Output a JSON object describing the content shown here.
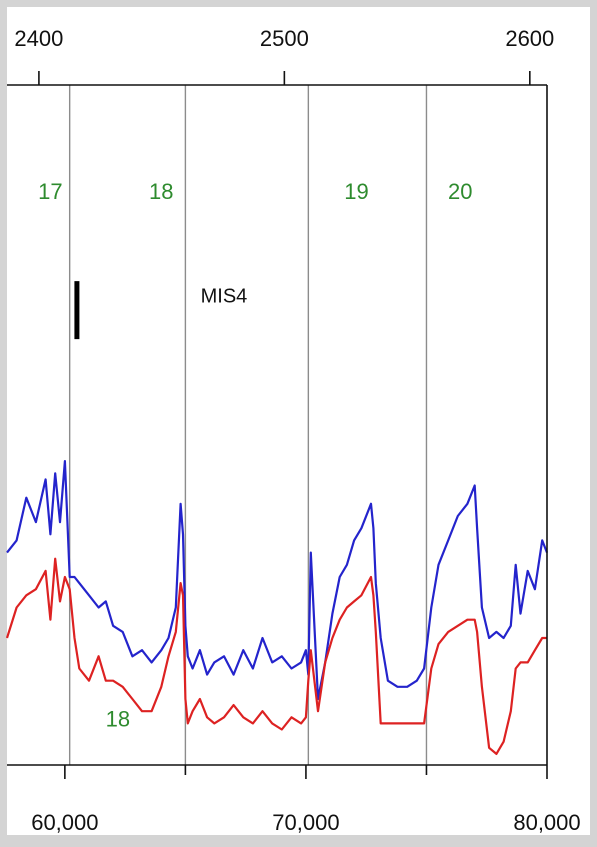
{
  "chart_data": {
    "type": "line",
    "title": "",
    "xlabel": "",
    "ylabel": "",
    "xlim": [
      57600,
      80000
    ],
    "x_ticks": [
      {
        "value": 60000,
        "label": "60,000"
      },
      {
        "value": 70000,
        "label": "70,000"
      },
      {
        "value": 80000,
        "label": "80,000"
      }
    ],
    "x_minor_ticks": [
      65000,
      75000
    ],
    "x2lim": [
      2387,
      2607
    ],
    "x2_ticks": [
      {
        "value": 2400,
        "label": "2400"
      },
      {
        "value": 2500,
        "label": "2500"
      },
      {
        "value": 2600,
        "label": "2600"
      }
    ],
    "ylim": [
      0,
      100
    ],
    "event_lines": [
      60200,
      65000,
      70100,
      75000
    ],
    "event_labels": [
      {
        "text": "17",
        "x": 59400,
        "y": 92
      },
      {
        "text": "18",
        "x": 64000,
        "y": 92
      },
      {
        "text": "19",
        "x": 72100,
        "y": 92
      },
      {
        "text": "20",
        "x": 76400,
        "y": 92
      },
      {
        "text": "18",
        "x": 62200,
        "y": 5.5
      }
    ],
    "event_color": "#2e8b2e",
    "annotations": [
      {
        "text": "MIS4",
        "x": 66600,
        "y": 75
      }
    ],
    "marker_bar": {
      "x": 60500,
      "y": [
        69,
        78.5
      ]
    },
    "grid": false,
    "series": [
      {
        "color": "#2424cc",
        "x": [
          57600,
          58000,
          58400,
          58800,
          59200,
          59400,
          59600,
          59800,
          60000,
          60200,
          60400,
          60600,
          61000,
          61400,
          61700,
          62000,
          62400,
          62800,
          63200,
          63600,
          64000,
          64300,
          64600,
          64800,
          64900,
          65000,
          65100,
          65300,
          65600,
          65900,
          66200,
          66600,
          67000,
          67400,
          67800,
          68200,
          68600,
          69000,
          69400,
          69800,
          70000,
          70100,
          70200,
          70500,
          70800,
          71100,
          71400,
          71700,
          72000,
          72300,
          72700,
          72800,
          72900,
          73100,
          73400,
          73800,
          74200,
          74600,
          74900,
          75200,
          75500,
          75900,
          76300,
          76700,
          77000,
          77100,
          77300,
          77600,
          77900,
          78200,
          78500,
          78700,
          78900,
          79200,
          79500,
          79800,
          80000
        ],
        "y": [
          34,
          36,
          43,
          39,
          46,
          37,
          47,
          39,
          49,
          30,
          30,
          29,
          27,
          25,
          26,
          22,
          21,
          17,
          18,
          16,
          18,
          20,
          25,
          42,
          37,
          22,
          17,
          15,
          18,
          14,
          16,
          17,
          14,
          18,
          15,
          20,
          16,
          17,
          15,
          16,
          18,
          14,
          34,
          10,
          16,
          24,
          30,
          32,
          36,
          38,
          42,
          38,
          29,
          20,
          13,
          12,
          12,
          13,
          15,
          25,
          32,
          36,
          40,
          42,
          45,
          38,
          25,
          20,
          21,
          20,
          22,
          32,
          24,
          31,
          28,
          36,
          34
        ]
      },
      {
        "color": "#dd2222",
        "x": [
          57600,
          58000,
          58400,
          58800,
          59200,
          59400,
          59600,
          59800,
          60000,
          60200,
          60400,
          60600,
          61000,
          61400,
          61700,
          62000,
          62400,
          62800,
          63200,
          63600,
          64000,
          64300,
          64600,
          64800,
          64900,
          65000,
          65100,
          65300,
          65600,
          65900,
          66200,
          66600,
          67000,
          67400,
          67800,
          68200,
          68600,
          69000,
          69400,
          69800,
          70000,
          70100,
          70200,
          70500,
          70800,
          71100,
          71400,
          71700,
          72000,
          72300,
          72700,
          72800,
          72900,
          73100,
          73400,
          73800,
          74200,
          74600,
          74900,
          75200,
          75500,
          75900,
          76300,
          76700,
          77000,
          77100,
          77300,
          77600,
          77900,
          78200,
          78500,
          78700,
          78900,
          79200,
          79500,
          79800,
          80000
        ],
        "y": [
          20,
          25,
          27,
          28,
          31,
          23,
          33,
          26,
          30,
          28,
          20,
          15,
          13,
          17,
          13,
          13,
          12,
          10,
          8,
          8,
          12,
          17,
          21,
          29,
          27,
          10,
          6,
          8,
          10,
          7,
          6,
          7,
          9,
          7,
          6,
          8,
          6,
          5,
          7,
          6,
          7,
          13,
          18,
          8,
          16,
          20,
          23,
          25,
          26,
          27,
          30,
          27,
          21,
          6,
          6,
          6,
          6,
          6,
          6,
          15,
          19,
          21,
          22,
          23,
          23,
          21,
          12,
          2,
          1,
          3,
          8,
          15,
          16,
          16,
          18,
          20,
          20
        ]
      }
    ]
  }
}
